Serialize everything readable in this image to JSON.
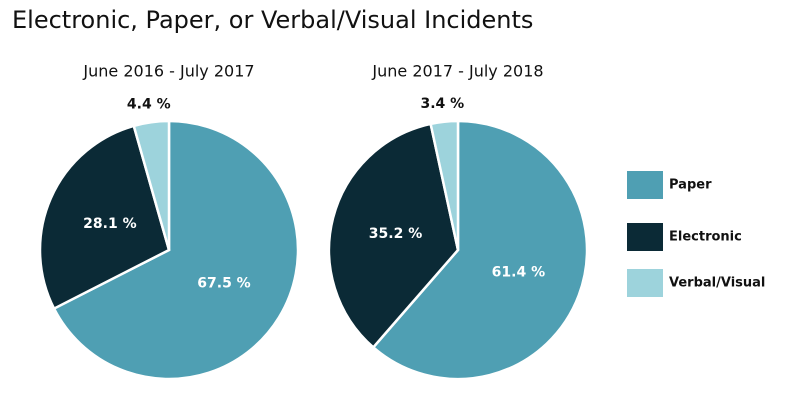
{
  "title": "Electronic, Paper, or Verbal/Visual Incidents",
  "chart_data": [
    {
      "type": "pie",
      "title": "June 2016 - July 2017",
      "categories": [
        "Paper",
        "Electronic",
        "Verbal/Visual"
      ],
      "values": [
        67.5,
        28.1,
        4.4
      ],
      "value_labels": [
        "67.5 %",
        "28.1 %",
        "4.4 %"
      ],
      "colors": [
        "#4f9fb3",
        "#0b2a36",
        "#9dd3dc"
      ]
    },
    {
      "type": "pie",
      "title": "June 2017 - July 2018",
      "categories": [
        "Paper",
        "Electronic",
        "Verbal/Visual"
      ],
      "values": [
        61.4,
        35.2,
        3.4
      ],
      "value_labels": [
        "61.4 %",
        "35.2 %",
        "3.4 %"
      ],
      "colors": [
        "#4f9fb3",
        "#0b2a36",
        "#9dd3dc"
      ]
    }
  ]
}
